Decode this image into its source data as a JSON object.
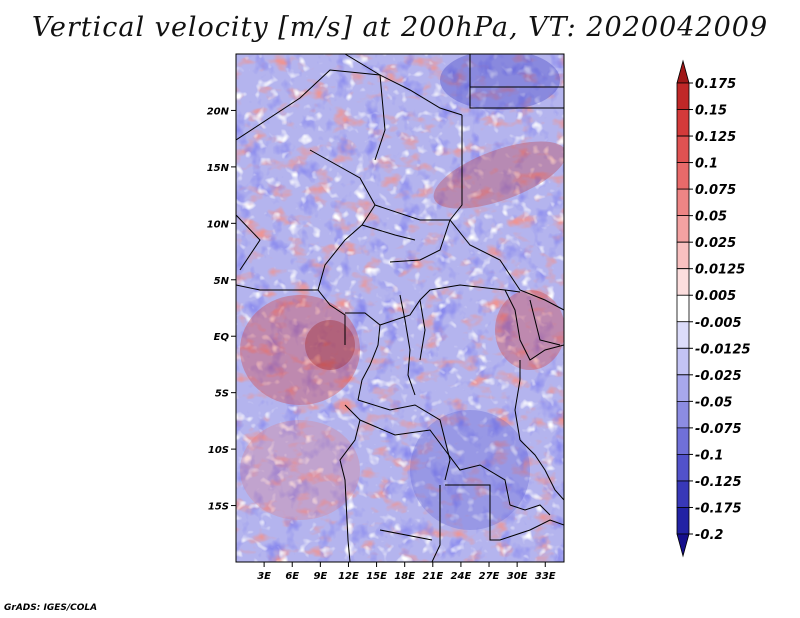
{
  "title": "Vertical velocity [m/s] at 200hPa, VT: 2020042009",
  "credit": "GrADS: IGES/COLA",
  "map": {
    "variable": "Vertical velocity",
    "units": "m/s",
    "level": "200hPa",
    "valid_time": "2020042009",
    "lon_range": [
      0,
      35
    ],
    "lat_range": [
      -20,
      25
    ],
    "lon_ticks": [
      {
        "value": 3,
        "label": "3E"
      },
      {
        "value": 6,
        "label": "6E"
      },
      {
        "value": 9,
        "label": "9E"
      },
      {
        "value": 12,
        "label": "12E"
      },
      {
        "value": 15,
        "label": "15E"
      },
      {
        "value": 18,
        "label": "18E"
      },
      {
        "value": 21,
        "label": "21E"
      },
      {
        "value": 24,
        "label": "24E"
      },
      {
        "value": 27,
        "label": "27E"
      },
      {
        "value": 30,
        "label": "30E"
      },
      {
        "value": 33,
        "label": "33E"
      }
    ],
    "lat_ticks": [
      {
        "value": 20,
        "label": "20N"
      },
      {
        "value": 15,
        "label": "15N"
      },
      {
        "value": 10,
        "label": "10N"
      },
      {
        "value": 5,
        "label": "5N"
      },
      {
        "value": 0,
        "label": "EQ"
      },
      {
        "value": -5,
        "label": "5S"
      },
      {
        "value": -10,
        "label": "10S"
      },
      {
        "value": -15,
        "label": "15S"
      }
    ]
  },
  "colorbar": {
    "levels": [
      "0.175",
      "0.15",
      "0.125",
      "0.1",
      "0.075",
      "0.05",
      "0.025",
      "0.0125",
      "0.005",
      "-0.005",
      "-0.0125",
      "-0.025",
      "-0.05",
      "-0.075",
      "-0.1",
      "-0.125",
      "-0.175",
      "-0.2"
    ],
    "colors": [
      "#a01818",
      "#c02828",
      "#d43a3a",
      "#e05252",
      "#e86a6a",
      "#ee8585",
      "#f3a2a2",
      "#f8c0c0",
      "#fcdede",
      "#ffffff",
      "#dcdcfa",
      "#c3c3f4",
      "#a8a8ec",
      "#8c8ce2",
      "#7070d8",
      "#5252ca",
      "#3838b8",
      "#2222a4",
      "#150f8c"
    ]
  }
}
